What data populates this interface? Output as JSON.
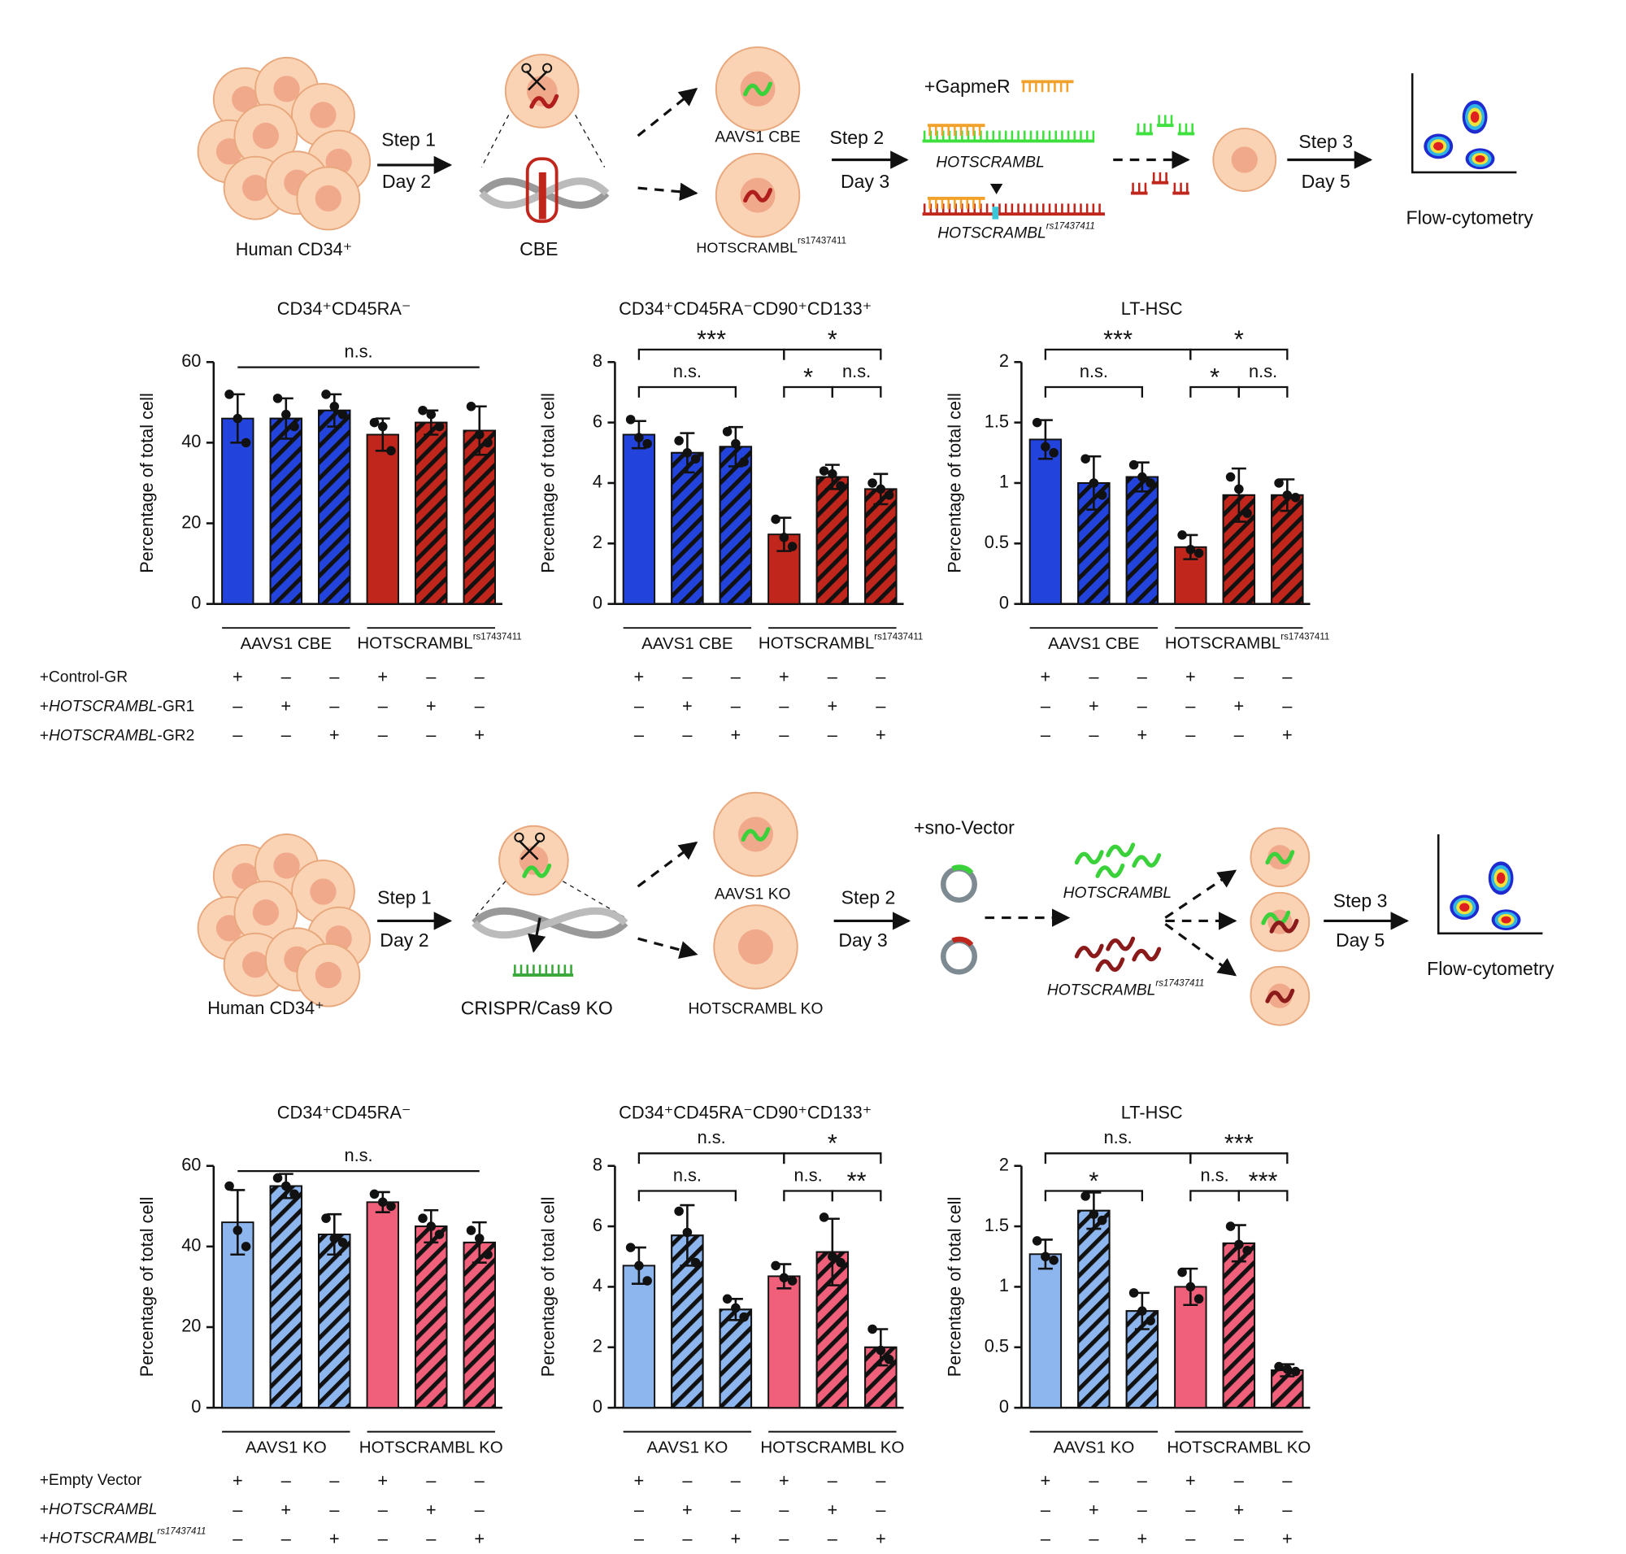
{
  "schematic_top": {
    "source": "Human CD34⁺",
    "step1": "Step 1",
    "day1": "Day 2",
    "editor": "CBE",
    "control": "AAVS1 CBE",
    "variant": {
      "text": "HOTSCRAMBL",
      "sup": "rs17437411"
    },
    "step2": "Step 2",
    "day2": "Day 3",
    "treatment": "+GapmeR",
    "target": "HOTSCRAMBL",
    "target_variant": {
      "text": "HOTSCRAMBL",
      "sup": "rs17437411"
    },
    "step3": "Step 3",
    "day3": "Day 5",
    "readout": "Flow-cytometry"
  },
  "schematic_bottom": {
    "source": "Human CD34⁺",
    "step1": "Step 1",
    "day1": "Day 2",
    "editor": "CRISPR/Cas9 KO",
    "control": "AAVS1 KO",
    "variant": "HOTSCRAMBL KO",
    "step2": "Step 2",
    "day2": "Day 3",
    "treatment": "+sno-Vector",
    "target": "HOTSCRAMBL",
    "target_variant": {
      "text": "HOTSCRAMBL",
      "sup": "rs17437411"
    },
    "step3": "Step 3",
    "day3": "Day 5",
    "readout": "Flow-cytometry"
  },
  "conditions_top": [
    [
      {
        "text": "+Control-GR"
      }
    ],
    [
      {
        "text": "+"
      },
      {
        "text": "HOTSCRAMBL",
        "style": "italic"
      },
      {
        "text": "-GR1"
      }
    ],
    [
      {
        "text": "+"
      },
      {
        "text": "HOTSCRAMBL",
        "style": "italic"
      },
      {
        "text": "-GR2"
      }
    ]
  ],
  "conditions_bottom": [
    [
      {
        "text": "+Empty Vector"
      }
    ],
    [
      {
        "text": "+"
      },
      {
        "text": "HOTSCRAMBL",
        "style": "italic"
      }
    ],
    [
      {
        "text": "+"
      },
      {
        "text": "HOTSCRAMBL",
        "style": "italic"
      },
      {
        "text": "rs17437411",
        "style": "sup"
      }
    ]
  ],
  "chart_data": [
    {
      "type": "bar",
      "title": "CD34⁺CD45RA⁻",
      "y_label": "Percentage of total cell",
      "ylim": [
        0,
        60
      ],
      "yticks": [
        0,
        20,
        40,
        60
      ],
      "values": [
        46,
        46,
        48,
        42,
        45,
        43
      ],
      "errors": [
        6,
        5,
        4,
        4,
        3,
        6
      ],
      "points": [
        [
          52,
          46,
          40
        ],
        [
          51,
          47,
          44
        ],
        [
          52,
          49,
          47
        ],
        [
          45,
          44,
          38
        ],
        [
          48,
          47,
          44
        ],
        [
          49,
          42,
          40
        ]
      ],
      "colors": [
        "#2244dd",
        "#2244dd",
        "#2244dd",
        "#c0261c",
        "#c0261c",
        "#c0261c"
      ],
      "hatched": [
        false,
        true,
        true,
        false,
        true,
        true
      ],
      "groups": [
        {
          "label": "AAVS1 CBE",
          "from": 0,
          "to": 2
        },
        {
          "label": "HOTSCRAMBL",
          "sup": "rs17437411",
          "from": 3,
          "to": 5
        }
      ],
      "brackets": [
        {
          "from": 0,
          "to": 5,
          "label": "n.s."
        }
      ],
      "signs": [
        [
          "+",
          "–",
          "–",
          "+",
          "–",
          "–"
        ],
        [
          "–",
          "+",
          "–",
          "–",
          "+",
          "–"
        ],
        [
          "–",
          "–",
          "+",
          "–",
          "–",
          "+"
        ]
      ]
    },
    {
      "type": "bar",
      "title": "CD34⁺CD45RA⁻CD90⁺CD133⁺",
      "y_label": "Percentage of total cell",
      "ylim": [
        0,
        8
      ],
      "yticks": [
        0,
        2,
        4,
        6,
        8
      ],
      "values": [
        5.6,
        5.0,
        5.2,
        2.3,
        4.2,
        3.8
      ],
      "errors": [
        0.45,
        0.65,
        0.65,
        0.55,
        0.4,
        0.5
      ],
      "points": [
        [
          6.1,
          5.5,
          5.3
        ],
        [
          5.4,
          5.0,
          4.8
        ],
        [
          5.7,
          5.3,
          4.7
        ],
        [
          2.8,
          2.2,
          1.9
        ],
        [
          4.4,
          4.3,
          3.9
        ],
        [
          4.0,
          3.8,
          3.6
        ]
      ],
      "colors": [
        "#2244dd",
        "#2244dd",
        "#2244dd",
        "#c0261c",
        "#c0261c",
        "#c0261c"
      ],
      "hatched": [
        false,
        true,
        true,
        false,
        true,
        true
      ],
      "groups": [
        {
          "label": "AAVS1 CBE",
          "from": 0,
          "to": 2
        },
        {
          "label": "HOTSCRAMBL",
          "sup": "rs17437411",
          "from": 3,
          "to": 5
        }
      ],
      "brackets": [
        {
          "from": 0,
          "to": 2,
          "label": "n.s."
        },
        {
          "from": 0,
          "to": 3,
          "label": "***"
        },
        {
          "from": 3,
          "to": 5,
          "label": "*"
        },
        {
          "from": 3,
          "to": 4,
          "label": "*"
        },
        {
          "from": 4,
          "to": 5,
          "label": "n.s."
        }
      ],
      "signs": [
        [
          "+",
          "–",
          "–",
          "+",
          "–",
          "–"
        ],
        [
          "–",
          "+",
          "–",
          "–",
          "+",
          "–"
        ],
        [
          "–",
          "–",
          "+",
          "–",
          "–",
          "+"
        ]
      ]
    },
    {
      "type": "bar",
      "title": "LT-HSC",
      "y_label": "Percentage of total cell",
      "ylim": [
        0,
        2
      ],
      "yticks": [
        0,
        0.5,
        1,
        1.5,
        2
      ],
      "values": [
        1.36,
        1.0,
        1.05,
        0.47,
        0.9,
        0.9
      ],
      "errors": [
        0.16,
        0.22,
        0.12,
        0.1,
        0.22,
        0.13
      ],
      "points": [
        [
          1.5,
          1.3,
          1.25
        ],
        [
          1.2,
          1.0,
          0.9
        ],
        [
          1.15,
          1.05,
          1.0
        ],
        [
          0.57,
          0.45,
          0.42
        ],
        [
          1.05,
          0.95,
          0.75
        ],
        [
          1.0,
          0.9,
          0.88
        ]
      ],
      "colors": [
        "#2244dd",
        "#2244dd",
        "#2244dd",
        "#c0261c",
        "#c0261c",
        "#c0261c"
      ],
      "hatched": [
        false,
        true,
        true,
        false,
        true,
        true
      ],
      "groups": [
        {
          "label": "AAVS1 CBE",
          "from": 0,
          "to": 2
        },
        {
          "label": "HOTSCRAMBL",
          "sup": "rs17437411",
          "from": 3,
          "to": 5
        }
      ],
      "brackets": [
        {
          "from": 0,
          "to": 2,
          "label": "n.s."
        },
        {
          "from": 0,
          "to": 3,
          "label": "***"
        },
        {
          "from": 3,
          "to": 5,
          "label": "*"
        },
        {
          "from": 3,
          "to": 4,
          "label": "*"
        },
        {
          "from": 4,
          "to": 5,
          "label": "n.s."
        }
      ],
      "signs": [
        [
          "+",
          "–",
          "–",
          "+",
          "–",
          "–"
        ],
        [
          "–",
          "+",
          "–",
          "–",
          "+",
          "–"
        ],
        [
          "–",
          "–",
          "+",
          "–",
          "–",
          "+"
        ]
      ]
    },
    {
      "type": "bar",
      "title": "CD34⁺CD45RA⁻",
      "y_label": "Percentage of total cell",
      "ylim": [
        0,
        60
      ],
      "yticks": [
        0,
        20,
        40,
        60
      ],
      "values": [
        46,
        55,
        43,
        51,
        45,
        41
      ],
      "errors": [
        8,
        3,
        5,
        2.5,
        4,
        5
      ],
      "points": [
        [
          55,
          44,
          40
        ],
        [
          57,
          55,
          53
        ],
        [
          47,
          42,
          41
        ],
        [
          53,
          51,
          50
        ],
        [
          47,
          45,
          43
        ],
        [
          44,
          42,
          38
        ]
      ],
      "colors": [
        "#8db6ee",
        "#8db6ee",
        "#8db6ee",
        "#f0607a",
        "#f0607a",
        "#f0607a"
      ],
      "hatched": [
        false,
        true,
        true,
        false,
        true,
        true
      ],
      "groups": [
        {
          "label": "AAVS1 KO",
          "from": 0,
          "to": 2
        },
        {
          "label": "HOTSCRAMBL KO",
          "from": 3,
          "to": 5
        }
      ],
      "brackets": [
        {
          "from": 0,
          "to": 5,
          "label": "n.s."
        }
      ],
      "signs": [
        [
          "+",
          "–",
          "–",
          "+",
          "–",
          "–"
        ],
        [
          "–",
          "+",
          "–",
          "–",
          "+",
          "–"
        ],
        [
          "–",
          "–",
          "+",
          "–",
          "–",
          "+"
        ]
      ]
    },
    {
      "type": "bar",
      "title": "CD34⁺CD45RA⁻CD90⁺CD133⁺",
      "y_label": "Percentage of total cell",
      "ylim": [
        0,
        8
      ],
      "yticks": [
        0,
        2,
        4,
        6,
        8
      ],
      "values": [
        4.7,
        5.7,
        3.25,
        4.35,
        5.15,
        2.0
      ],
      "errors": [
        0.6,
        1.0,
        0.35,
        0.4,
        1.1,
        0.6
      ],
      "points": [
        [
          5.3,
          4.7,
          4.2
        ],
        [
          6.5,
          5.8,
          4.8
        ],
        [
          3.6,
          3.3,
          3.0
        ],
        [
          4.7,
          4.3,
          4.2
        ],
        [
          6.3,
          5.0,
          4.8
        ],
        [
          2.6,
          1.9,
          1.6
        ]
      ],
      "colors": [
        "#8db6ee",
        "#8db6ee",
        "#8db6ee",
        "#f0607a",
        "#f0607a",
        "#f0607a"
      ],
      "hatched": [
        false,
        true,
        true,
        false,
        true,
        true
      ],
      "groups": [
        {
          "label": "AAVS1 KO",
          "from": 0,
          "to": 2
        },
        {
          "label": "HOTSCRAMBL KO",
          "from": 3,
          "to": 5
        }
      ],
      "brackets": [
        {
          "from": 0,
          "to": 2,
          "label": "n.s."
        },
        {
          "from": 0,
          "to": 3,
          "label": "n.s."
        },
        {
          "from": 3,
          "to": 5,
          "label": "*"
        },
        {
          "from": 3,
          "to": 4,
          "label": "n.s."
        },
        {
          "from": 4,
          "to": 5,
          "label": "**"
        }
      ],
      "signs": [
        [
          "+",
          "–",
          "–",
          "+",
          "–",
          "–"
        ],
        [
          "–",
          "+",
          "–",
          "–",
          "+",
          "–"
        ],
        [
          "–",
          "–",
          "+",
          "–",
          "–",
          "+"
        ]
      ]
    },
    {
      "type": "bar",
      "title": "LT-HSC",
      "y_label": "Percentage of total cell",
      "ylim": [
        0,
        2
      ],
      "yticks": [
        0,
        0.5,
        1,
        1.5,
        2
      ],
      "values": [
        1.27,
        1.63,
        0.8,
        1.0,
        1.36,
        0.31
      ],
      "errors": [
        0.12,
        0.15,
        0.15,
        0.15,
        0.15,
        0.05
      ],
      "points": [
        [
          1.38,
          1.25,
          1.22
        ],
        [
          1.75,
          1.6,
          1.55
        ],
        [
          0.95,
          0.8,
          0.72
        ],
        [
          1.12,
          1.0,
          0.9
        ],
        [
          1.5,
          1.35,
          1.3
        ],
        [
          0.34,
          0.32,
          0.3
        ]
      ],
      "colors": [
        "#8db6ee",
        "#8db6ee",
        "#8db6ee",
        "#f0607a",
        "#f0607a",
        "#f0607a"
      ],
      "hatched": [
        false,
        true,
        true,
        false,
        true,
        true
      ],
      "groups": [
        {
          "label": "AAVS1 KO",
          "from": 0,
          "to": 2
        },
        {
          "label": "HOTSCRAMBL KO",
          "from": 3,
          "to": 5
        }
      ],
      "brackets": [
        {
          "from": 0,
          "to": 2,
          "label": "*"
        },
        {
          "from": 0,
          "to": 3,
          "label": "n.s."
        },
        {
          "from": 3,
          "to": 5,
          "label": "***"
        },
        {
          "from": 3,
          "to": 4,
          "label": "n.s."
        },
        {
          "from": 4,
          "to": 5,
          "label": "***"
        }
      ],
      "signs": [
        [
          "+",
          "–",
          "–",
          "+",
          "–",
          "–"
        ],
        [
          "–",
          "+",
          "–",
          "–",
          "+",
          "–"
        ],
        [
          "–",
          "–",
          "+",
          "–",
          "–",
          "+"
        ]
      ]
    }
  ]
}
